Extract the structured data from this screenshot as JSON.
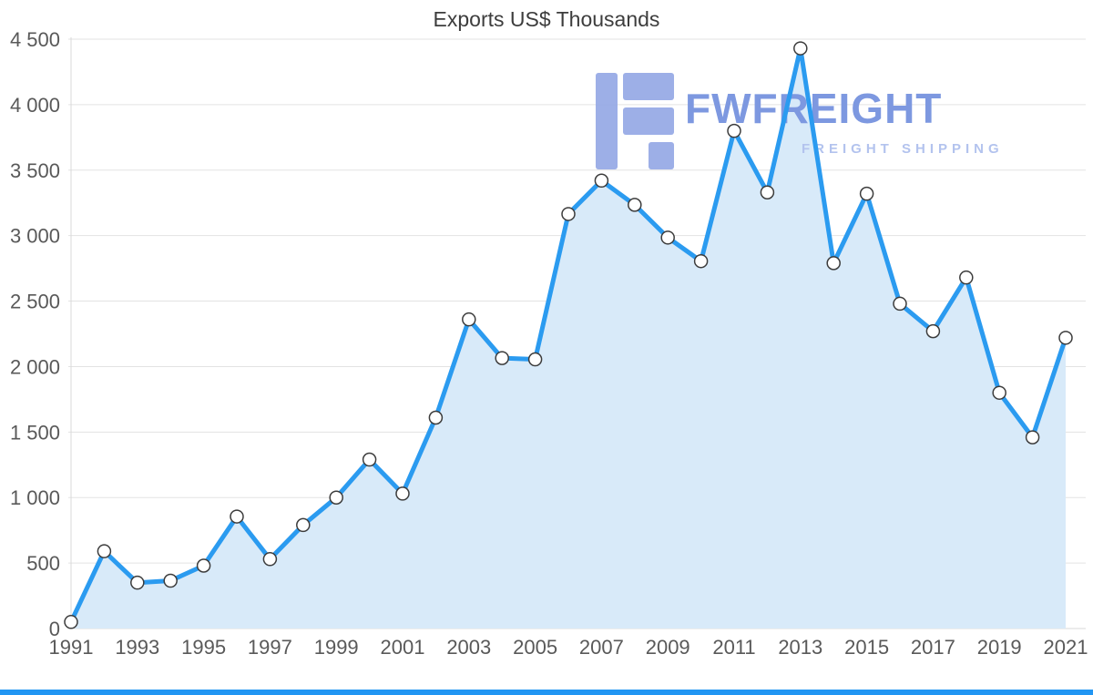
{
  "page": {
    "title": "Exports US$ Thousands"
  },
  "watermark": {
    "brand": "FWFREIGHT",
    "tagline": "FREIGHT SHIPPING"
  },
  "colors": {
    "line": "#2b9bf0",
    "area": "#d8eaf9",
    "marker_fill": "#ffffff",
    "marker_stroke": "#3c3c3c",
    "grid": "#e3e3e3",
    "axis_line": "#d9d9d9",
    "axis_text": "#595959",
    "title_text": "#3d3d3d",
    "watermark_logo": "#98abe6",
    "watermark_brand": "#7d98e0",
    "watermark_tagline": "#b3c3ee",
    "bottom_bar": "#2196f3"
  },
  "chart_data": {
    "type": "area",
    "title": "Exports US$ Thousands",
    "x": [
      1991,
      1992,
      1993,
      1994,
      1995,
      1996,
      1997,
      1998,
      1999,
      2000,
      2001,
      2002,
      2003,
      2004,
      2005,
      2006,
      2007,
      2008,
      2009,
      2010,
      2011,
      2012,
      2013,
      2014,
      2015,
      2016,
      2017,
      2018,
      2019,
      2020,
      2021
    ],
    "values": [
      50,
      590,
      350,
      365,
      480,
      855,
      530,
      790,
      1000,
      1290,
      1030,
      1610,
      2360,
      2065,
      2055,
      3165,
      3420,
      3235,
      2985,
      2805,
      3800,
      3330,
      4430,
      2790,
      3320,
      2480,
      2270,
      2680,
      1800,
      1460,
      2220
    ],
    "xlabel": "",
    "ylabel": "",
    "ylim": [
      0,
      4500
    ],
    "ytick_step": 500,
    "xtick_step": 2,
    "ytick_labels": [
      "0",
      "500",
      "1 000",
      "1 500",
      "2 000",
      "2 500",
      "3 000",
      "3 500",
      "4 000",
      "4 500"
    ],
    "xtick_labels": [
      "1991",
      "1993",
      "1995",
      "1997",
      "1999",
      "2001",
      "2003",
      "2005",
      "2007",
      "2009",
      "2011",
      "2013",
      "2015",
      "2017",
      "2019",
      "2021"
    ],
    "grid": "horizontal",
    "legend": "none",
    "marker": "circle"
  }
}
